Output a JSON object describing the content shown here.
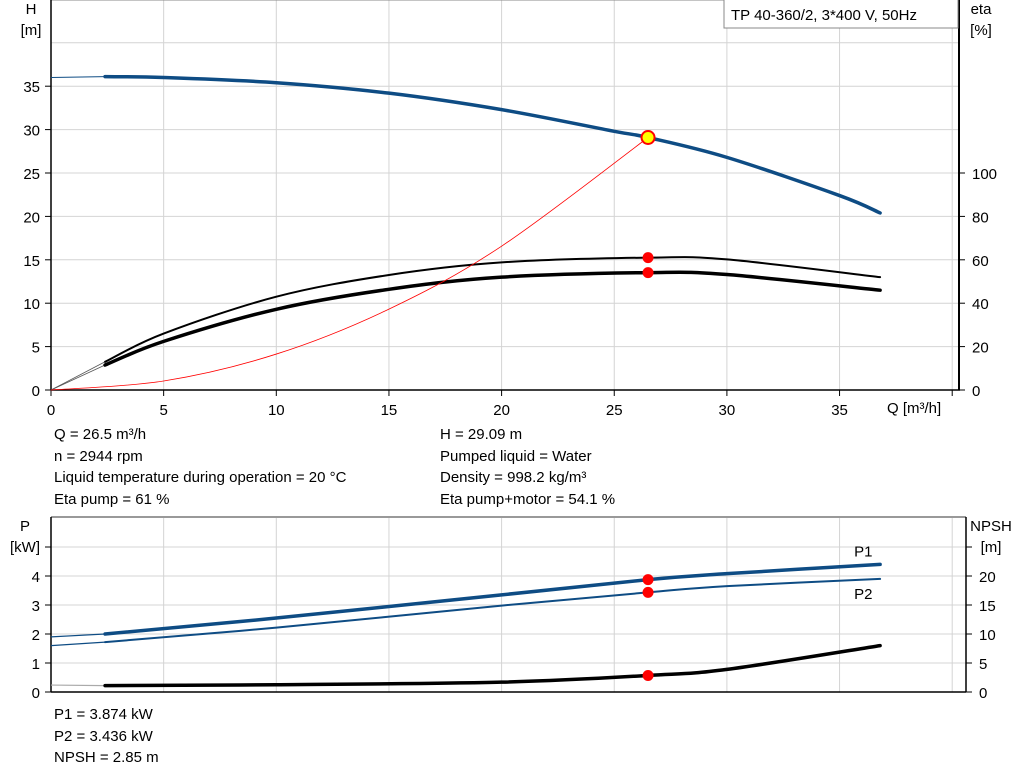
{
  "legend_box": "TP 40-360/2, 3*400 V, 50Hz",
  "info_left": [
    "Q = 26.5 m³/h",
    "n = 2944 rpm",
    "Liquid temperature during operation = 20 °C",
    "Eta pump = 61 %"
  ],
  "info_right": [
    "H = 29.09 m",
    "Pumped liquid = Water",
    "Density = 998.2 kg/m³",
    "Eta pump+motor = 54.1 %"
  ],
  "info_bottom": [
    "P1 = 3.874 kW",
    "P2 = 3.436 kW",
    "NPSH = 2.85 m"
  ],
  "colors": {
    "head": "#0e4c84",
    "eta": "#000000",
    "system": "#ff0000",
    "power": "#0e4c84",
    "npsh": "#000000",
    "point": "#ff0000",
    "grid": "#d4d4d4"
  },
  "chart_data": [
    {
      "type": "line",
      "xlabel": "Q [m³/h]",
      "ylabel": "H\n[m]",
      "ylabel_right": "eta\n[%]",
      "xlim": [
        0,
        40
      ],
      "ylim": [
        0,
        40
      ],
      "ylim_right": [
        0,
        160
      ],
      "x_ticks": [
        0,
        5,
        10,
        15,
        20,
        25,
        30,
        35
      ],
      "y_ticks": [
        0,
        5,
        10,
        15,
        20,
        25,
        30,
        35
      ],
      "y_ticks_right": [
        0,
        20,
        40,
        60,
        80,
        100
      ],
      "grid": true,
      "operating_point": {
        "Q": 26.5,
        "H": 29.09,
        "eta_pump": 61,
        "eta_pump_motor": 54.1
      },
      "series": [
        {
          "key": "head",
          "axis": "left",
          "x": [
            0,
            2.4,
            5,
            10,
            15,
            20,
            25,
            26.5,
            30,
            35,
            36.8
          ],
          "y": [
            36,
            36.1,
            36,
            35.4,
            34.2,
            32.3,
            29.8,
            29.09,
            26.8,
            22.4,
            20.4
          ]
        },
        {
          "key": "eta_pump",
          "axis": "right",
          "x": [
            2.4,
            5,
            10,
            15,
            20,
            26.5,
            30,
            36.8
          ],
          "y": [
            13,
            26,
            43,
            53,
            58.8,
            61,
            60.2,
            52
          ]
        },
        {
          "key": "eta_pump_motor",
          "axis": "right",
          "x": [
            2.4,
            5,
            10,
            15,
            20,
            26.5,
            30,
            36.8
          ],
          "y": [
            11.5,
            22.4,
            37.2,
            46.4,
            52,
            54.1,
            53.2,
            46
          ]
        },
        {
          "key": "system",
          "axis": "left",
          "x": [
            0,
            5,
            10,
            15,
            20,
            26.5
          ],
          "y": [
            0,
            1.04,
            4.14,
            9.32,
            16.57,
            29.09
          ]
        }
      ]
    },
    {
      "type": "line",
      "xlabel": "",
      "ylabel": "P\n[kW]",
      "ylabel_right": "NPSH\n[m]",
      "xlim": [
        0,
        40
      ],
      "ylim": [
        0,
        5
      ],
      "ylim_right": [
        0,
        25
      ],
      "y_ticks": [
        0,
        1,
        2,
        3,
        4
      ],
      "y_ticks_right": [
        0,
        5,
        10,
        15,
        20
      ],
      "grid": true,
      "series": [
        {
          "key": "P1",
          "name": "P1",
          "axis": "left",
          "x": [
            0,
            2.4,
            10,
            20,
            26.5,
            30,
            36.8
          ],
          "y": [
            1.9,
            2.0,
            2.55,
            3.35,
            3.874,
            4.08,
            4.4
          ]
        },
        {
          "key": "P2",
          "name": "P2",
          "axis": "left",
          "x": [
            0,
            2.4,
            10,
            20,
            26.5,
            30,
            36.8
          ],
          "y": [
            1.6,
            1.72,
            2.22,
            2.98,
            3.436,
            3.65,
            3.9
          ]
        },
        {
          "key": "NPSH",
          "axis": "right",
          "x": [
            0,
            2.4,
            10,
            20,
            26.5,
            30,
            36.8
          ],
          "y": [
            1.2,
            1.1,
            1.25,
            1.7,
            2.85,
            3.9,
            8.0
          ]
        }
      ]
    }
  ]
}
